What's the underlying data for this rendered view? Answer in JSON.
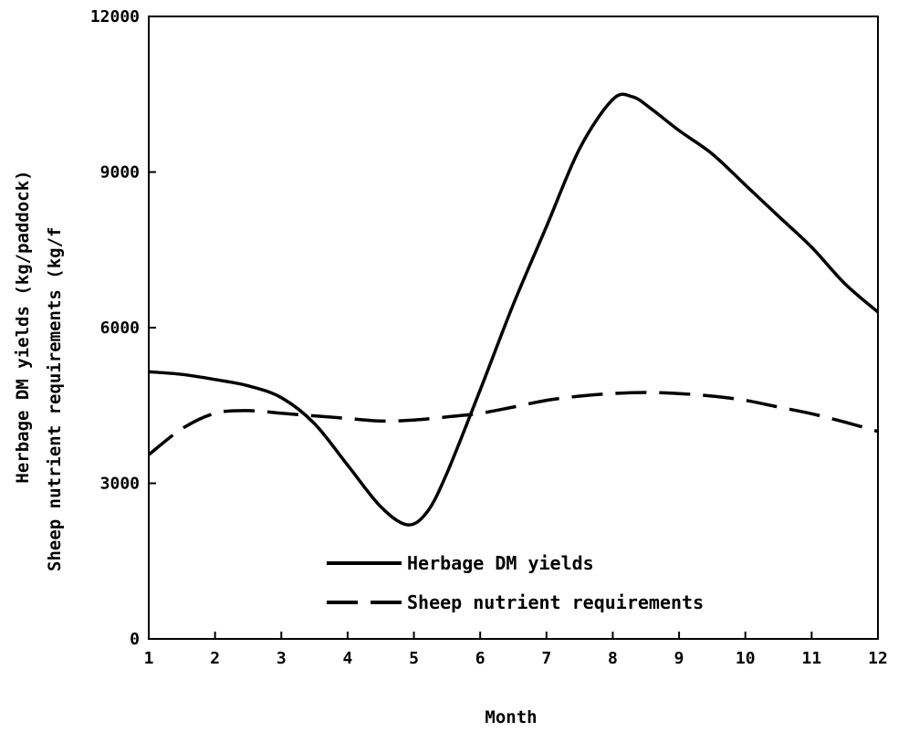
{
  "chart_data": {
    "type": "line",
    "title": "",
    "xlabel": "Month",
    "ylabel_lines": [
      "Herbage DM yields (kg/paddock)",
      "Sheep nutrient requirements (kg/f"
    ],
    "xlim": [
      1,
      12
    ],
    "ylim": [
      0,
      12000
    ],
    "x_ticks": [
      "1",
      "2",
      "3",
      "4",
      "5",
      "6",
      "7",
      "8",
      "9",
      "10",
      "11",
      "12"
    ],
    "y_ticks": [
      "0",
      "3000",
      "6000",
      "9000",
      "12000"
    ],
    "grid": false,
    "legend_position": "bottom-center",
    "series": [
      {
        "name": "Herbage DM yields",
        "style": "solid",
        "points": [
          [
            1,
            5150
          ],
          [
            1.5,
            5100
          ],
          [
            2,
            5000
          ],
          [
            2.5,
            4880
          ],
          [
            3,
            4650
          ],
          [
            3.5,
            4150
          ],
          [
            4,
            3350
          ],
          [
            4.5,
            2550
          ],
          [
            4.9,
            2200
          ],
          [
            5.2,
            2450
          ],
          [
            5.5,
            3200
          ],
          [
            6,
            4800
          ],
          [
            6.5,
            6450
          ],
          [
            7,
            7950
          ],
          [
            7.5,
            9450
          ],
          [
            8,
            10400
          ],
          [
            8.3,
            10450
          ],
          [
            8.6,
            10200
          ],
          [
            9,
            9800
          ],
          [
            9.5,
            9350
          ],
          [
            10,
            8750
          ],
          [
            10.5,
            8150
          ],
          [
            11,
            7550
          ],
          [
            11.5,
            6850
          ],
          [
            12,
            6300
          ]
        ]
      },
      {
        "name": "Sheep nutrient requirements",
        "style": "dashed",
        "points": [
          [
            1,
            3550
          ],
          [
            1.5,
            4050
          ],
          [
            2,
            4350
          ],
          [
            2.5,
            4400
          ],
          [
            3,
            4350
          ],
          [
            3.5,
            4300
          ],
          [
            4,
            4250
          ],
          [
            4.5,
            4200
          ],
          [
            5,
            4220
          ],
          [
            5.5,
            4280
          ],
          [
            6,
            4350
          ],
          [
            6.5,
            4470
          ],
          [
            7,
            4600
          ],
          [
            7.5,
            4680
          ],
          [
            8,
            4730
          ],
          [
            8.5,
            4750
          ],
          [
            9,
            4730
          ],
          [
            9.5,
            4680
          ],
          [
            10,
            4600
          ],
          [
            10.5,
            4470
          ],
          [
            11,
            4340
          ],
          [
            11.5,
            4180
          ],
          [
            12,
            4000
          ]
        ]
      }
    ]
  }
}
